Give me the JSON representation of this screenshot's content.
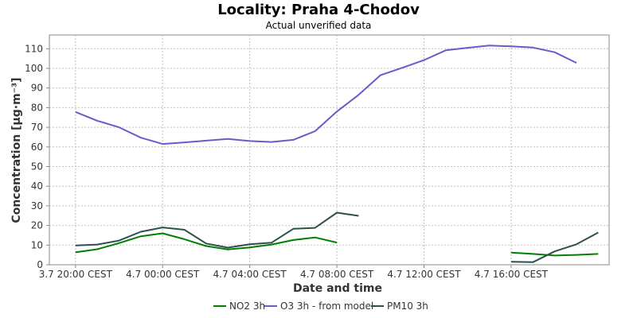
{
  "chart_data": {
    "type": "line",
    "title": "Locality: Praha 4-Chodov",
    "subtitle": "Actual unverified data",
    "xlabel": "Date and time",
    "ylabel": "Concentration [µg·m⁻³]",
    "ylim": [
      0,
      117
    ],
    "yticks": [
      0,
      10,
      20,
      30,
      40,
      50,
      60,
      70,
      80,
      90,
      100,
      110
    ],
    "xlim": [
      -1.2,
      24.5
    ],
    "xticks": [
      {
        "x": 0,
        "label": "3.7 20:00 CEST"
      },
      {
        "x": 4,
        "label": "4.7 00:00 CEST"
      },
      {
        "x": 8,
        "label": "4.7 04:00 CEST"
      },
      {
        "x": 12,
        "label": "4.7 08:00 CEST"
      },
      {
        "x": 16,
        "label": "4.7 12:00 CEST"
      },
      {
        "x": 20,
        "label": "4.7 16:00 CEST"
      }
    ],
    "x": [
      0,
      1,
      2,
      3,
      4,
      5,
      6,
      7,
      8,
      9,
      10,
      11,
      12,
      13,
      14,
      15,
      16,
      17,
      18,
      19,
      20,
      21,
      22,
      23,
      24
    ],
    "legend_position": "bottom",
    "grid": true,
    "series": [
      {
        "name": "NO2 3h",
        "color": "#008000",
        "values": [
          6.3,
          7.9,
          11,
          14.5,
          16,
          13,
          9.5,
          7.8,
          8.8,
          10.3,
          12.6,
          13.9,
          11.3,
          null,
          null,
          null,
          null,
          null,
          null,
          null,
          6.2,
          5.5,
          4.7,
          5,
          5.5
        ]
      },
      {
        "name": "O3 3h - from model",
        "color": "#6a5acd",
        "values": [
          77.8,
          73.3,
          70,
          64.7,
          61.5,
          62.3,
          63.2,
          64.1,
          63,
          62.5,
          63.6,
          68,
          78,
          86.5,
          96.5,
          100.3,
          104.2,
          109.2,
          110.5,
          111.6,
          111.2,
          110.6,
          108.2,
          102.8,
          null
        ]
      },
      {
        "name": "PM10 3h",
        "color": "#2f4f4f",
        "values": [
          9.8,
          10.3,
          12.3,
          16.8,
          19,
          17.8,
          10.8,
          8.7,
          10.4,
          11.2,
          18.3,
          18.8,
          26.5,
          24.9,
          null,
          null,
          null,
          null,
          null,
          null,
          1.5,
          1.3,
          6.8,
          10.4,
          16.4
        ]
      }
    ]
  }
}
